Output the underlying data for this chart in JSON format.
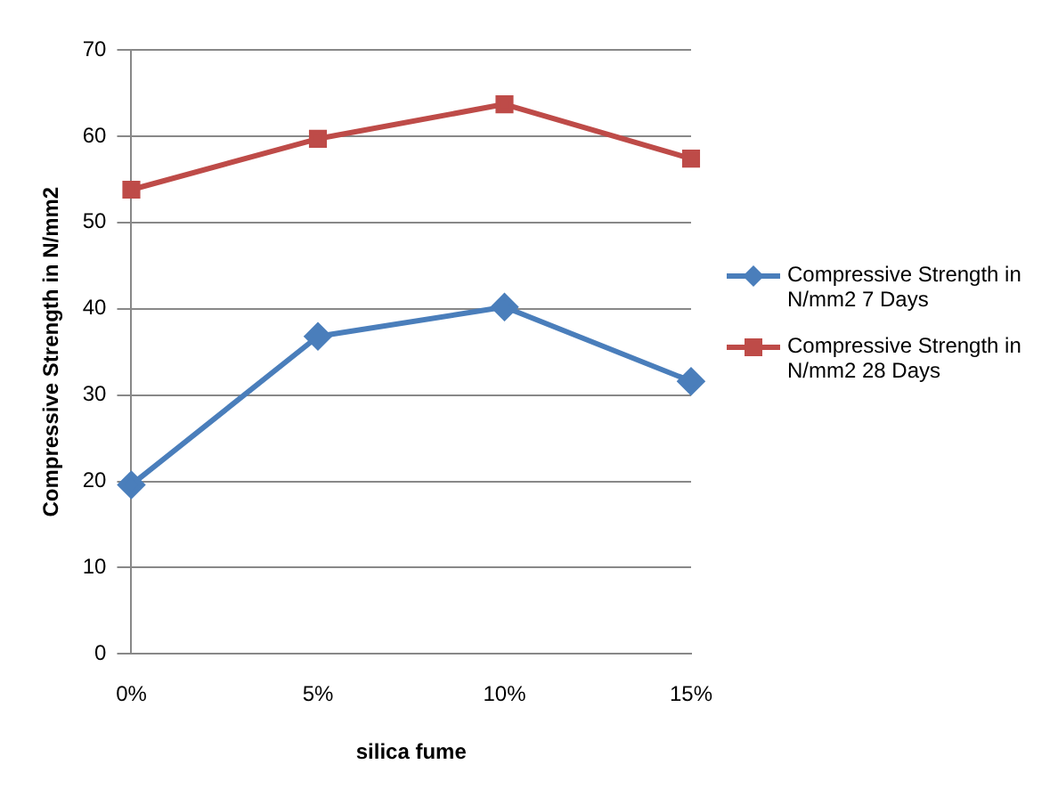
{
  "chart_data": {
    "type": "line",
    "xlabel": "silica fume",
    "ylabel": "Compressive Strength in N/mm2",
    "categories": [
      "0%",
      "5%",
      "10%",
      "15%"
    ],
    "series": [
      {
        "name": "Compressive Strength in N/mm2 7 Days",
        "color": "#4a7ebb",
        "marker": "diamond",
        "values": [
          19.6,
          36.8,
          40.2,
          31.6
        ]
      },
      {
        "name": "Compressive Strength in N/mm2 28 Days",
        "color": "#be4b48",
        "marker": "square",
        "values": [
          53.8,
          59.7,
          63.7,
          57.4
        ]
      }
    ],
    "ylim": [
      0,
      70
    ],
    "yticks": [
      0,
      10,
      20,
      30,
      40,
      50,
      60,
      70
    ],
    "grid": "y",
    "legend": "right",
    "line_style": "solid"
  }
}
